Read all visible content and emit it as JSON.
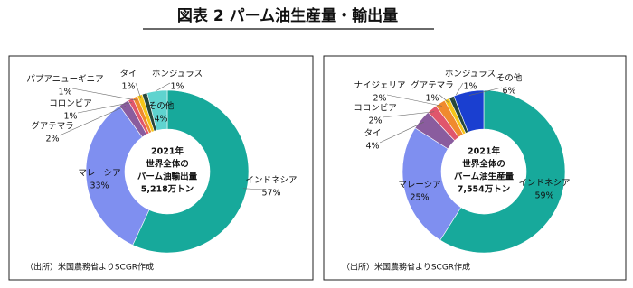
{
  "title": "図表 2 パーム油生産量・輸出量",
  "chart_data": [
    {
      "type": "pie",
      "donut": true,
      "categories": [
        "インドネシア",
        "マレーシア",
        "グアテマラ",
        "コロンビア",
        "パプアニューギニア",
        "タイ",
        "ホンジュラス",
        "その他"
      ],
      "values": [
        57,
        33,
        2,
        1,
        1,
        1,
        1,
        4
      ],
      "value_labels": [
        "57%",
        "33%",
        "2%",
        "1%",
        "1%",
        "1%",
        "1%",
        "4%"
      ],
      "colors": [
        "#17a99b",
        "#7f8ff0",
        "#8a5c9e",
        "#e0566c",
        "#f08a2e",
        "#f5c518",
        "#27473a",
        "#5fd3cf"
      ],
      "center_text": [
        "2021年",
        "世界全体の",
        "パーム油輸出量",
        "5,218万トン"
      ],
      "source": "（出所）米国農務省よりSCGR作成"
    },
    {
      "type": "pie",
      "donut": true,
      "categories": [
        "インドネシア",
        "マレーシア",
        "タイ",
        "コロンビア",
        "ナイジェリア",
        "グアテマラ",
        "ホンジュラス",
        "その他"
      ],
      "values": [
        59,
        25,
        4,
        2,
        2,
        1,
        1,
        6
      ],
      "value_labels": [
        "59%",
        "25%",
        "4%",
        "2%",
        "2%",
        "1%",
        "1%",
        "6%"
      ],
      "colors": [
        "#17a99b",
        "#7f8ff0",
        "#8a5c9e",
        "#e0566c",
        "#f08a2e",
        "#f5c518",
        "#27473a",
        "#1a3fd0"
      ],
      "center_text": [
        "2021年",
        "世界全体の",
        "パーム油生産量",
        "7,554万トン"
      ],
      "source": "（出所）米国農務省よりSCGR作成"
    }
  ]
}
